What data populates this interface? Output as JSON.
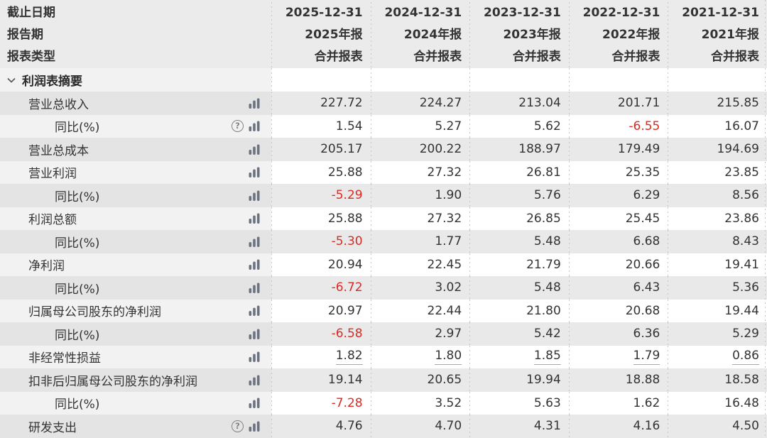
{
  "table": {
    "header": {
      "row_labels": [
        "截止日期",
        "报告期",
        "报表类型"
      ],
      "columns": [
        {
          "date": "2025-12-31",
          "period": "2025年报",
          "report_type": "合并报表"
        },
        {
          "date": "2024-12-31",
          "period": "2024年报",
          "report_type": "合并报表"
        },
        {
          "date": "2023-12-31",
          "period": "2023年报",
          "report_type": "合并报表"
        },
        {
          "date": "2022-12-31",
          "period": "2022年报",
          "report_type": "合并报表"
        },
        {
          "date": "2021-12-31",
          "period": "2021年报",
          "report_type": "合并报表"
        }
      ]
    },
    "section": {
      "title": "利润表摘要"
    },
    "rows": [
      {
        "label": "营业总收入",
        "indent": 1,
        "icons": [
          "bar"
        ],
        "underline": false,
        "values": [
          "227.72",
          "224.27",
          "213.04",
          "201.71",
          "215.85"
        ]
      },
      {
        "label": "同比(%)",
        "indent": 2,
        "icons": [
          "help",
          "bar"
        ],
        "underline": false,
        "values": [
          "1.54",
          "5.27",
          "5.62",
          "-6.55",
          "16.07"
        ]
      },
      {
        "label": "营业总成本",
        "indent": 1,
        "icons": [
          "bar"
        ],
        "underline": false,
        "values": [
          "205.17",
          "200.22",
          "188.97",
          "179.49",
          "194.69"
        ]
      },
      {
        "label": "营业利润",
        "indent": 1,
        "icons": [
          "bar"
        ],
        "underline": false,
        "values": [
          "25.88",
          "27.32",
          "26.81",
          "25.35",
          "23.85"
        ]
      },
      {
        "label": "同比(%)",
        "indent": 2,
        "icons": [
          "bar"
        ],
        "underline": false,
        "values": [
          "-5.29",
          "1.90",
          "5.76",
          "6.29",
          "8.56"
        ]
      },
      {
        "label": "利润总额",
        "indent": 1,
        "icons": [
          "bar"
        ],
        "underline": false,
        "values": [
          "25.88",
          "27.32",
          "26.85",
          "25.45",
          "23.86"
        ]
      },
      {
        "label": "同比(%)",
        "indent": 2,
        "icons": [
          "bar"
        ],
        "underline": false,
        "values": [
          "-5.30",
          "1.77",
          "5.48",
          "6.68",
          "8.43"
        ]
      },
      {
        "label": "净利润",
        "indent": 1,
        "icons": [
          "bar"
        ],
        "underline": false,
        "values": [
          "20.94",
          "22.45",
          "21.79",
          "20.66",
          "19.41"
        ]
      },
      {
        "label": "同比(%)",
        "indent": 2,
        "icons": [
          "bar"
        ],
        "underline": false,
        "values": [
          "-6.72",
          "3.02",
          "5.48",
          "6.43",
          "5.36"
        ]
      },
      {
        "label": "归属母公司股东的净利润",
        "indent": 1,
        "icons": [
          "bar"
        ],
        "underline": false,
        "values": [
          "20.97",
          "22.44",
          "21.80",
          "20.68",
          "19.44"
        ]
      },
      {
        "label": "同比(%)",
        "indent": 2,
        "icons": [
          "bar"
        ],
        "underline": false,
        "values": [
          "-6.58",
          "2.97",
          "5.42",
          "6.36",
          "5.29"
        ]
      },
      {
        "label": "非经常性损益",
        "indent": 1,
        "icons": [
          "bar"
        ],
        "underline": true,
        "values": [
          "1.82",
          "1.80",
          "1.85",
          "1.79",
          "0.86"
        ]
      },
      {
        "label": "扣非后归属母公司股东的净利润",
        "indent": 1,
        "icons": [
          "bar"
        ],
        "underline": false,
        "values": [
          "19.14",
          "20.65",
          "19.94",
          "18.88",
          "18.58"
        ]
      },
      {
        "label": "同比(%)",
        "indent": 2,
        "icons": [
          "bar"
        ],
        "underline": false,
        "values": [
          "-7.28",
          "3.52",
          "5.63",
          "1.62",
          "16.48"
        ]
      },
      {
        "label": "研发支出",
        "indent": 1,
        "icons": [
          "help",
          "bar"
        ],
        "underline": false,
        "values": [
          "4.76",
          "4.70",
          "4.31",
          "4.16",
          "4.50"
        ]
      }
    ],
    "colors": {
      "negative_value": "#dc2b24",
      "text": "#333333",
      "stripe_gray": "#e9e9e9"
    }
  }
}
